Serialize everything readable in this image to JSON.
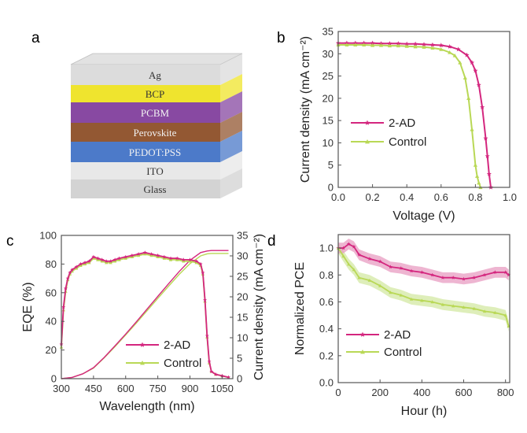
{
  "colors": {
    "ad2": "#d4267e",
    "control": "#b9d856",
    "ad2_band": "#e89cc2",
    "control_band": "#d3e8a3"
  },
  "panel_labels": {
    "a": "a",
    "b": "b",
    "c": "c",
    "d": "d"
  },
  "device_stack": {
    "layers": [
      {
        "label": "Ag",
        "color": "#d9d9d9"
      },
      {
        "label": "BCP",
        "color": "#eee21c"
      },
      {
        "label": "PCBM",
        "color": "#7e3a9a"
      },
      {
        "label": "Perovskite",
        "color": "#8a4a22"
      },
      {
        "label": "PEDOT:PSS",
        "color": "#3d6fc4"
      },
      {
        "label": "ITO",
        "color": "#e6e6e6"
      },
      {
        "label": "Glass",
        "color": "#cfcfcf"
      }
    ]
  },
  "chart_data": [
    {
      "panel": "b",
      "type": "line",
      "xlabel": "Voltage (V)",
      "ylabel": "Current density (mA cm⁻²)",
      "xlim": [
        0,
        1.0
      ],
      "ylim": [
        0,
        35
      ],
      "xticks": [
        "0.0",
        "0.2",
        "0.4",
        "0.6",
        "0.8",
        "1.0"
      ],
      "yticks": [
        "0",
        "5",
        "10",
        "15",
        "20",
        "25",
        "30",
        "35"
      ],
      "legend_position": "middle-left",
      "series": [
        {
          "name": "2-AD",
          "key": "ad2",
          "x": [
            0,
            0.05,
            0.1,
            0.15,
            0.2,
            0.25,
            0.3,
            0.35,
            0.4,
            0.45,
            0.5,
            0.55,
            0.6,
            0.65,
            0.7,
            0.75,
            0.78,
            0.8,
            0.82,
            0.84,
            0.86,
            0.87,
            0.88,
            0.89
          ],
          "y": [
            32.4,
            32.4,
            32.4,
            32.4,
            32.4,
            32.3,
            32.3,
            32.3,
            32.2,
            32.2,
            32.1,
            32.0,
            31.9,
            31.6,
            31.0,
            29.7,
            28.0,
            26.2,
            23.0,
            18.0,
            11.0,
            7.0,
            3.0,
            0
          ]
        },
        {
          "name": "Control",
          "key": "control",
          "x": [
            0,
            0.05,
            0.1,
            0.15,
            0.2,
            0.25,
            0.3,
            0.35,
            0.4,
            0.45,
            0.5,
            0.55,
            0.6,
            0.65,
            0.68,
            0.71,
            0.74,
            0.76,
            0.78,
            0.8,
            0.81,
            0.82,
            0.83
          ],
          "y": [
            32.0,
            32.0,
            32.0,
            32.0,
            31.9,
            31.9,
            31.8,
            31.8,
            31.7,
            31.6,
            31.5,
            31.3,
            31.0,
            30.3,
            29.6,
            28.0,
            24.6,
            20.0,
            13.0,
            5.0,
            2.5,
            1.0,
            0
          ]
        }
      ]
    },
    {
      "panel": "c",
      "type": "line",
      "xlabel": "Wavelength (nm)",
      "ylabel": "EQE (%)",
      "ylabel_right": "Current density (mA cm⁻²)",
      "xlim": [
        300,
        1100
      ],
      "ylim": [
        0,
        100
      ],
      "ylim_right": [
        0,
        35
      ],
      "xticks": [
        "300",
        "450",
        "600",
        "750",
        "900",
        "1050"
      ],
      "yticks": [
        "0",
        "20",
        "40",
        "60",
        "80",
        "100"
      ],
      "yticks_right": [
        "0",
        "5",
        "10",
        "15",
        "20",
        "25",
        "30",
        "35"
      ],
      "legend_position": "bottom-center",
      "series": [
        {
          "name": "2-AD",
          "key": "ad2",
          "axis": "left",
          "x": [
            300,
            310,
            320,
            330,
            340,
            350,
            370,
            390,
            410,
            430,
            450,
            470,
            490,
            510,
            530,
            550,
            570,
            600,
            630,
            660,
            690,
            720,
            750,
            780,
            810,
            840,
            870,
            900,
            930,
            950,
            960,
            970,
            980,
            990,
            1000,
            1020,
            1050,
            1080
          ],
          "y": [
            24,
            50,
            63,
            70,
            74,
            76,
            78,
            80,
            81,
            82,
            85,
            84,
            83,
            82,
            82,
            83,
            84,
            85,
            86,
            87,
            88,
            87,
            86,
            85,
            84,
            84,
            83,
            83,
            82,
            80,
            74,
            55,
            30,
            12,
            5,
            3,
            2,
            1
          ]
        },
        {
          "name": "Control",
          "key": "control",
          "axis": "left",
          "x": [
            300,
            310,
            320,
            330,
            340,
            350,
            370,
            390,
            410,
            430,
            450,
            470,
            490,
            510,
            530,
            550,
            570,
            600,
            630,
            660,
            690,
            720,
            750,
            780,
            810,
            840,
            870,
            900,
            930,
            950,
            960,
            970,
            980,
            990,
            1000,
            1020,
            1050,
            1080
          ],
          "y": [
            22,
            48,
            61,
            69,
            73,
            75,
            77,
            79,
            80,
            81,
            84,
            83,
            82,
            81,
            81,
            82,
            83,
            84,
            85,
            86,
            87,
            86,
            85,
            84,
            83,
            83,
            82,
            82,
            81,
            79,
            73,
            54,
            29,
            11,
            5,
            3,
            2,
            1
          ]
        },
        {
          "name": "2-AD",
          "key": "ad2",
          "axis": "right",
          "x": [
            300,
            350,
            400,
            450,
            500,
            550,
            600,
            650,
            700,
            750,
            800,
            850,
            900,
            950,
            980,
            1000,
            1050,
            1080
          ],
          "y": [
            0,
            0.3,
            1.2,
            2.7,
            5.2,
            8.0,
            10.9,
            13.9,
            17.0,
            20.1,
            23.2,
            26.2,
            28.9,
            30.8,
            31.2,
            31.3,
            31.3,
            31.3
          ]
        },
        {
          "name": "Control",
          "key": "control",
          "axis": "right",
          "x": [
            300,
            350,
            400,
            450,
            500,
            550,
            600,
            650,
            700,
            750,
            800,
            850,
            900,
            950,
            980,
            1000,
            1050,
            1080
          ],
          "y": [
            0,
            0.3,
            1.2,
            2.6,
            5.1,
            7.8,
            10.7,
            13.6,
            16.6,
            19.6,
            22.6,
            25.5,
            28.1,
            30.0,
            30.5,
            30.6,
            30.6,
            30.6
          ]
        }
      ]
    },
    {
      "panel": "d",
      "type": "line",
      "xlabel": "Hour (h)",
      "ylabel": "Normalized PCE",
      "xlim": [
        0,
        820
      ],
      "ylim": [
        0,
        1.1
      ],
      "xticks": [
        "0",
        "200",
        "400",
        "600",
        "800"
      ],
      "yticks": [
        "0.0",
        "0.2",
        "0.4",
        "0.6",
        "0.8",
        "1.0"
      ],
      "legend_position": "lower-left",
      "series": [
        {
          "name": "2-AD",
          "key": "ad2",
          "band": 0.04,
          "x": [
            0,
            25,
            50,
            75,
            100,
            150,
            200,
            250,
            300,
            350,
            400,
            450,
            500,
            550,
            600,
            650,
            700,
            750,
            800,
            815
          ],
          "y": [
            1.0,
            1.0,
            1.03,
            1.01,
            0.95,
            0.92,
            0.9,
            0.86,
            0.85,
            0.83,
            0.82,
            0.8,
            0.78,
            0.78,
            0.77,
            0.78,
            0.8,
            0.82,
            0.82,
            0.8
          ]
        },
        {
          "name": "Control",
          "key": "control",
          "band": 0.04,
          "x": [
            0,
            25,
            50,
            75,
            100,
            150,
            200,
            250,
            300,
            350,
            400,
            450,
            500,
            550,
            600,
            650,
            700,
            750,
            800,
            815
          ],
          "y": [
            1.0,
            0.94,
            0.88,
            0.84,
            0.78,
            0.76,
            0.72,
            0.67,
            0.65,
            0.62,
            0.61,
            0.6,
            0.58,
            0.57,
            0.56,
            0.55,
            0.53,
            0.52,
            0.5,
            0.42
          ]
        }
      ]
    }
  ]
}
